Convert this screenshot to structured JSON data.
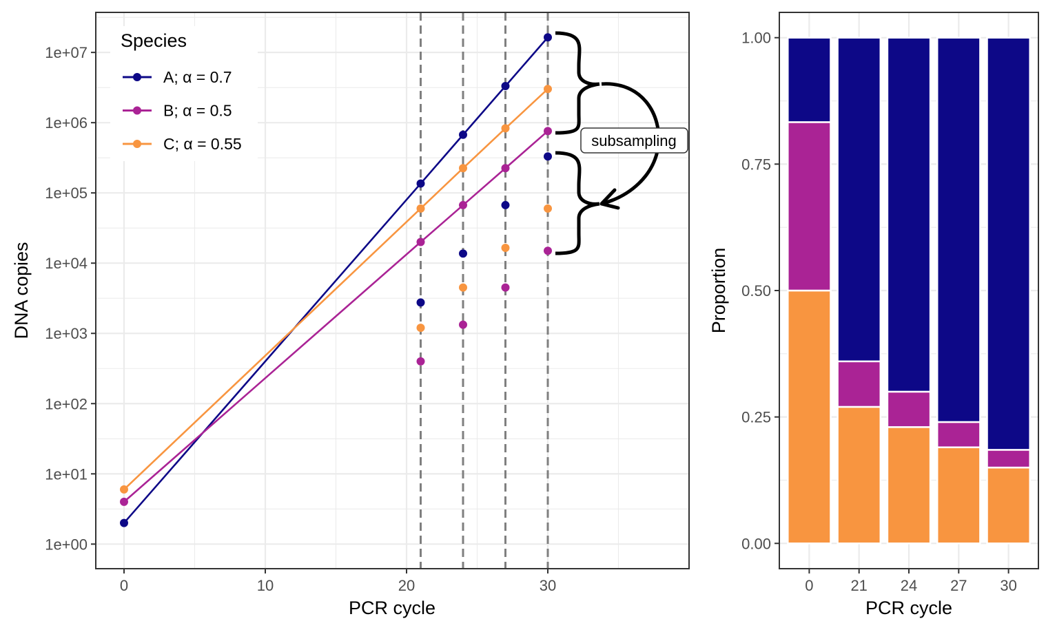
{
  "chart_data": [
    {
      "type": "line",
      "xlabel": "PCR cycle",
      "ylabel": "DNA copies",
      "xlim": [
        -2,
        40
      ],
      "ylim": [
        -0.35,
        7.57
      ],
      "yscale": "log10",
      "x_ticks": [
        0,
        10,
        20,
        30
      ],
      "x_tick_labels": [
        "0",
        "10",
        "20",
        "30"
      ],
      "y_ticks": [
        0,
        1,
        2,
        3,
        4,
        5,
        6,
        7
      ],
      "y_tick_labels": [
        "1e+00",
        "1e+01",
        "1e+02",
        "1e+03",
        "1e+04",
        "1e+05",
        "1e+06",
        "1e+07"
      ],
      "grid": true,
      "vlines": [
        21,
        24,
        27,
        30
      ],
      "legend": {
        "title": "Species",
        "position": "top-left"
      },
      "series": [
        {
          "name": "A; α = 0.7",
          "color": "#0d0887",
          "x": [
            0,
            21,
            24,
            27,
            30
          ],
          "y": [
            2,
            136000,
            673000,
            3320000,
            16400000
          ],
          "subsampled": [
            2750,
            13700,
            67000,
            330000
          ]
        },
        {
          "name": "B; α = 0.5",
          "color": "#aa2395",
          "x": [
            0,
            21,
            24,
            27,
            30
          ],
          "y": [
            4,
            20000,
            67000,
            225000,
            760000
          ],
          "subsampled": [
            400,
            1330,
            4500,
            15000
          ]
        },
        {
          "name": "C; α = 0.55",
          "color": "#f89540",
          "x": [
            0,
            21,
            24,
            27,
            30
          ],
          "y": [
            6,
            60000,
            225000,
            830000,
            3020000
          ],
          "subsampled": [
            1200,
            4500,
            16500,
            60000
          ]
        }
      ],
      "annotation": "subsampling"
    },
    {
      "type": "bar",
      "stacked": true,
      "xlabel": "PCR cycle",
      "ylabel": "Proportion",
      "ylim": [
        -0.05,
        1.05
      ],
      "y_ticks": [
        0,
        0.25,
        0.5,
        0.75,
        1
      ],
      "y_tick_labels": [
        "0.00",
        "0.25",
        "0.50",
        "0.75",
        "1.00"
      ],
      "grid": true,
      "categories": [
        "0",
        "21",
        "24",
        "27",
        "30"
      ],
      "series": [
        {
          "name": "C; α = 0.55",
          "color": "#f89540",
          "values": [
            0.5,
            0.27,
            0.23,
            0.19,
            0.15
          ]
        },
        {
          "name": "B; α = 0.5",
          "color": "#aa2395",
          "values": [
            0.333,
            0.09,
            0.07,
            0.05,
            0.035
          ]
        },
        {
          "name": "A; α = 0.7",
          "color": "#0d0887",
          "values": [
            0.167,
            0.64,
            0.7,
            0.76,
            0.815
          ]
        }
      ]
    }
  ]
}
